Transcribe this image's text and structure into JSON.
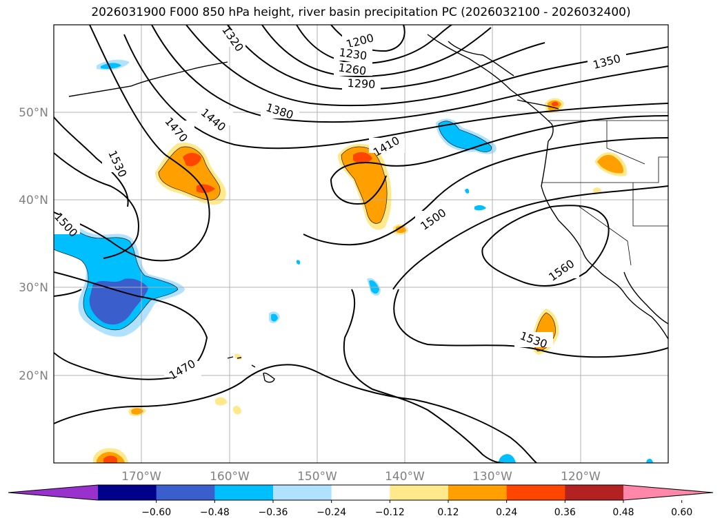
{
  "title": "2026031900 F000 850 hPa height, river basin precipitation PC (2026032100 - 2026032400)",
  "latitude_labels": [
    "50°N",
    "40°N",
    "30°N",
    "20°N"
  ],
  "longitude_labels": [
    "170°W",
    "160°W",
    "150°W",
    "140°W",
    "130°W",
    "120°W"
  ],
  "contour_labels": [
    "1200",
    "1230",
    "1260",
    "1290",
    "1350",
    "1380",
    "1410",
    "1440",
    "1470",
    "1530",
    "1500",
    "1500",
    "1560",
    "1530",
    "1470",
    "1320"
  ],
  "colorbar": {
    "colors": [
      "#9932cc",
      "#00008b",
      "#3a5fcd",
      "#00bfff",
      "#b0e2ff",
      "#ffffff",
      "#ffe98a",
      "#ffa000",
      "#ff4500",
      "#b22222",
      "#ff88aa"
    ],
    "tick_labels": [
      "−0.60",
      "−0.48",
      "−0.36",
      "−0.24",
      "−0.12",
      "0.12",
      "0.24",
      "0.36",
      "0.48",
      "0.60"
    ]
  }
}
